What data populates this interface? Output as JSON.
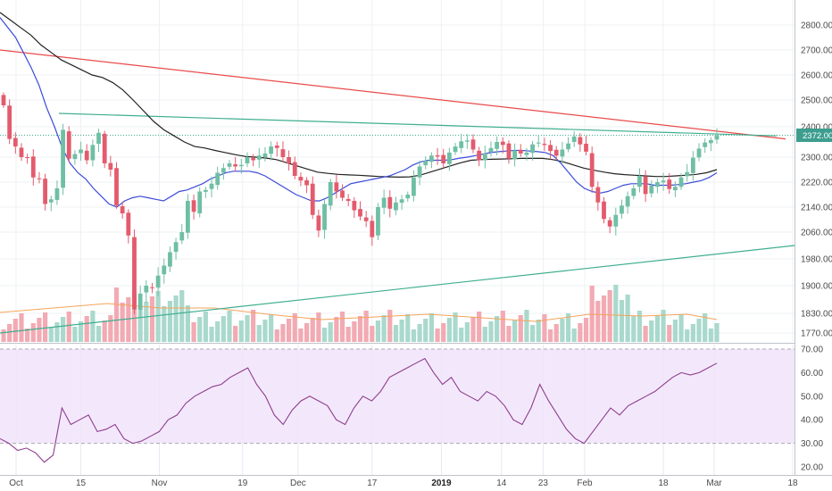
{
  "chart_data": {
    "type": "candlestick",
    "price_axis": {
      "ticks": [
        2800,
        2700,
        2600,
        2500,
        2400,
        2300,
        2220,
        2140,
        2060,
        1980,
        1900,
        1830,
        1770
      ],
      "labels": [
        "2800.00",
        "2700.00",
        "2600.00",
        "2500.00",
        "2400.00",
        "2300.00",
        "2220.00",
        "2140.00",
        "2060.00",
        "1980.00",
        "1900.00",
        "1830.00",
        "1770.00"
      ],
      "last_price_label": "2372.00"
    },
    "rsi_axis": {
      "ticks": [
        70,
        60,
        50,
        40,
        30,
        20
      ],
      "labels": [
        "70.00",
        "60.00",
        "50.00",
        "40.00",
        "30.00",
        "20.00"
      ],
      "band_upper": 70,
      "band_lower": 30
    },
    "x_axis": {
      "labels": [
        {
          "text": "Oct",
          "day": 0,
          "bold": false
        },
        {
          "text": "15",
          "day": 14,
          "bold": false
        },
        {
          "text": "Nov",
          "day": 31,
          "bold": false
        },
        {
          "text": "19",
          "day": 49,
          "bold": false
        },
        {
          "text": "Dec",
          "day": 61,
          "bold": false
        },
        {
          "text": "17",
          "day": 77,
          "bold": false
        },
        {
          "text": "2019",
          "day": 92,
          "bold": true
        },
        {
          "text": "14",
          "day": 105,
          "bold": false
        },
        {
          "text": "23",
          "day": 114,
          "bold": false
        },
        {
          "text": "Feb",
          "day": 123,
          "bold": false
        },
        {
          "text": "18",
          "day": 140,
          "bold": false
        },
        {
          "text": "Mar",
          "day": 151,
          "bold": false
        },
        {
          "text": "18",
          "day": 168,
          "bold": false
        }
      ]
    },
    "candles_close": [
      2480,
      2360,
      2335,
      2300,
      2298,
      2235,
      2230,
      2150,
      2165,
      2200,
      2390,
      2295,
      2310,
      2325,
      2290,
      2340,
      2380,
      2280,
      2260,
      2145,
      2120,
      2050,
      1840,
      1880,
      1900,
      1895,
      1930,
      1960,
      2000,
      2030,
      2060,
      2160,
      2125,
      2190,
      2195,
      2215,
      2250,
      2265,
      2280,
      2270,
      2275,
      2300,
      2290,
      2305,
      2312,
      2335,
      2330,
      2300,
      2280,
      2240,
      2225,
      2210,
      2115,
      2065,
      2150,
      2220,
      2190,
      2170,
      2160,
      2130,
      2110,
      2095,
      2045,
      2140,
      2170,
      2135,
      2155,
      2165,
      2180,
      2235,
      2270,
      2288,
      2305,
      2302,
      2280,
      2315,
      2335,
      2352,
      2355,
      2325,
      2290,
      2312,
      2330,
      2350,
      2340,
      2295,
      2322,
      2312,
      2315,
      2342,
      2348,
      2340,
      2320,
      2305,
      2325,
      2345,
      2368,
      2342,
      2318,
      2205,
      2155,
      2102,
      2078,
      2115,
      2145,
      2175,
      2200,
      2240,
      2182,
      2210,
      2220,
      2225,
      2198,
      2205,
      2235,
      2252,
      2298,
      2328,
      2348,
      2356,
      2372
    ],
    "sma_fast": [
      2830,
      2790,
      2750,
      2690,
      2630,
      2560,
      2470,
      2400,
      2330,
      2280,
      2250,
      2230,
      2200,
      2175,
      2150,
      2140,
      2160,
      2170,
      2175,
      2170,
      2165,
      2160,
      2175,
      2190,
      2195,
      2205,
      2215,
      2230,
      2240,
      2250,
      2255,
      2255,
      2255,
      2250,
      2240,
      2225,
      2210,
      2195,
      2180,
      2170,
      2160,
      2160,
      2170,
      2185,
      2200,
      2215,
      2220,
      2225,
      2230,
      2235,
      2240,
      2250,
      2260,
      2275,
      2285,
      2290,
      2290,
      2290,
      2292,
      2297,
      2300,
      2305,
      2310,
      2315,
      2318,
      2320,
      2322,
      2322,
      2320,
      2318,
      2315,
      2305,
      2280,
      2250,
      2220,
      2200,
      2190,
      2185,
      2190,
      2200,
      2210,
      2215,
      2215,
      2215,
      2210,
      2210,
      2210,
      2212,
      2215,
      2220,
      2225,
      2235,
      2250
    ],
    "sma_slow": [
      2850,
      2820,
      2790,
      2760,
      2720,
      2690,
      2660,
      2640,
      2620,
      2600,
      2590,
      2570,
      2540,
      2500,
      2460,
      2420,
      2390,
      2370,
      2350,
      2335,
      2330,
      2322,
      2315,
      2308,
      2302,
      2300,
      2297,
      2292,
      2282,
      2272,
      2262,
      2252,
      2248,
      2245,
      2243,
      2242,
      2240,
      2238,
      2237,
      2236,
      2237,
      2242,
      2252,
      2262,
      2272,
      2282,
      2290,
      2292,
      2293,
      2294,
      2295,
      2296,
      2296,
      2296,
      2292,
      2285,
      2275,
      2265,
      2258,
      2252,
      2247,
      2244,
      2242,
      2240,
      2238,
      2238,
      2240,
      2242,
      2245,
      2250,
      2260
    ],
    "ma_200": [
      2700,
      2360
    ],
    "trendline_upper": [
      2450,
      2370
    ],
    "trendline_lower": [
      1770,
      2020
    ],
    "rsi_values": [
      32,
      30,
      27,
      28,
      26,
      22,
      25,
      45,
      38,
      40,
      42,
      35,
      36,
      38,
      32,
      30,
      31,
      33,
      35,
      40,
      42,
      47,
      50,
      52,
      54,
      55,
      58,
      60,
      62,
      55,
      50,
      42,
      38,
      44,
      48,
      50,
      48,
      46,
      40,
      38,
      45,
      50,
      48,
      52,
      58,
      60,
      62,
      64,
      66,
      60,
      55,
      58,
      52,
      50,
      48,
      52,
      50,
      46,
      40,
      38,
      45,
      55,
      48,
      42,
      36,
      32,
      30,
      35,
      40,
      45,
      42,
      46,
      48,
      50,
      52,
      55,
      58,
      60,
      59,
      60,
      62,
      64
    ]
  }
}
